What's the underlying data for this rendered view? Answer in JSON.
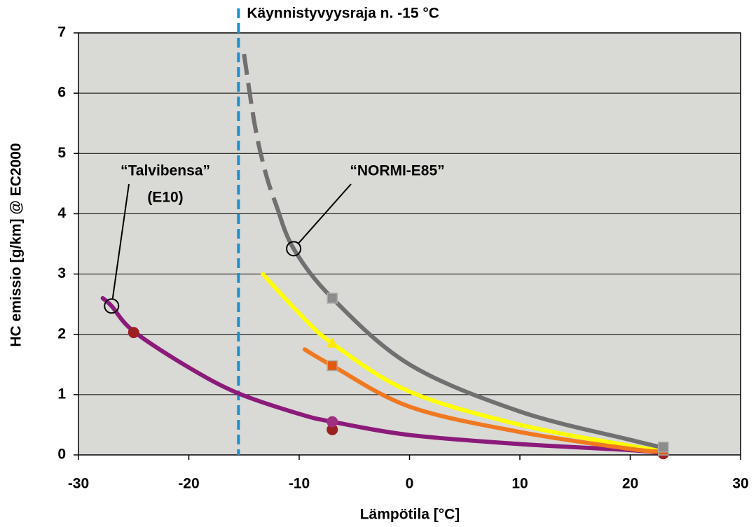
{
  "chart_data": {
    "type": "line",
    "xlabel": "Lämpötila [°C]",
    "ylabel": "HC emissio [g/km] @ EC2000",
    "xlim": [
      -30,
      30
    ],
    "xticks": [
      -30,
      -20,
      -10,
      0,
      10,
      20,
      30
    ],
    "ylim": [
      0,
      7
    ],
    "yticks": [
      0,
      1,
      2,
      3,
      4,
      5,
      6,
      7
    ],
    "grid": true,
    "series": [
      {
        "color": "#8b1a7a",
        "dashed": false,
        "x": [
          -27.8,
          -27,
          -25,
          -20,
          -15.5,
          -10,
          -7,
          0,
          10,
          20,
          23
        ],
        "values": [
          2.6,
          2.47,
          2.05,
          1.45,
          1.02,
          0.68,
          0.55,
          0.33,
          0.18,
          0.08,
          0.03
        ],
        "markers": [
          {
            "shape": "circle",
            "color": "#9b2020",
            "x": [
              -25,
              -7,
              23
            ],
            "values": [
              2.03,
              0.42,
              0.02
            ]
          },
          {
            "shape": "circle",
            "color": "#a0307f",
            "x": [
              -7
            ],
            "values": [
              0.55
            ]
          }
        ]
      },
      {
        "color": "#ffff00",
        "dashed": false,
        "x": [
          -13.3,
          -10,
          -7,
          0,
          10,
          20,
          23
        ],
        "values": [
          3.0,
          2.35,
          1.85,
          1.05,
          0.5,
          0.15,
          0.07
        ],
        "markers": [
          {
            "shape": "triangle",
            "color": "#ffe800",
            "x": [
              -7
            ],
            "values": [
              1.85
            ]
          }
        ]
      },
      {
        "color": "#f07820",
        "dashed": false,
        "x": [
          -9.5,
          -7,
          0,
          10,
          20,
          23
        ],
        "values": [
          1.75,
          1.48,
          0.8,
          0.38,
          0.1,
          0.05
        ],
        "markers": [
          {
            "shape": "square",
            "color": "#e05a10",
            "x": [
              -7,
              23
            ],
            "values": [
              1.48,
              0.08
            ]
          }
        ]
      },
      {
        "color": "#707070",
        "dashed": true,
        "x": [
          -15,
          -14,
          -13,
          -12
        ],
        "values": [
          6.65,
          5.45,
          4.65,
          4.1
        ]
      },
      {
        "color": "#707070",
        "dashed": false,
        "x": [
          -12,
          -10.5,
          -7,
          0,
          10,
          20,
          23
        ],
        "values": [
          4.1,
          3.42,
          2.6,
          1.5,
          0.72,
          0.25,
          0.12
        ],
        "markers": [
          {
            "shape": "square",
            "color": "#8c8c8c",
            "x": [
              -7,
              23
            ],
            "values": [
              2.6,
              0.13
            ]
          }
        ]
      }
    ],
    "vline": {
      "x": -15.5,
      "color": "#1a8fd0",
      "label": "Käynnistyvyysraja n. -15 °C"
    },
    "annotations": [
      {
        "lines": [
          "“Talvibensa”",
          "(E10)"
        ],
        "x": -27,
        "y": 2.47
      },
      {
        "lines": [
          "“NORMI-E85”"
        ],
        "x": -10.5,
        "y": 3.42
      }
    ]
  }
}
